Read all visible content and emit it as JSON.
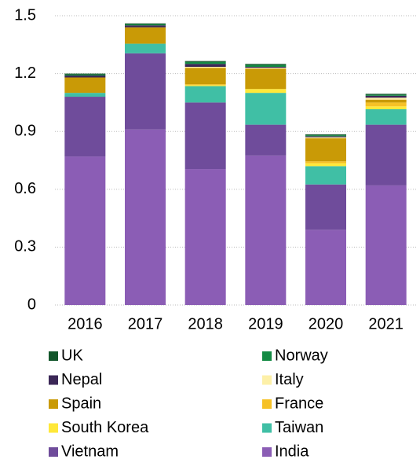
{
  "chart_data": {
    "type": "stacked_bar",
    "categories": [
      "2016",
      "2017",
      "2018",
      "2019",
      "2020",
      "2021"
    ],
    "series": [
      {
        "name": "India",
        "color": "#8b5db5",
        "values": [
          0.77,
          0.91,
          0.705,
          0.775,
          0.39,
          0.62
        ]
      },
      {
        "name": "Vietnam",
        "color": "#6f4c9b",
        "values": [
          0.31,
          0.395,
          0.345,
          0.16,
          0.235,
          0.315
        ]
      },
      {
        "name": "Taiwan",
        "color": "#40bfa5",
        "values": [
          0.02,
          0.05,
          0.085,
          0.165,
          0.095,
          0.08
        ]
      },
      {
        "name": "South Korea",
        "color": "#ffe83a",
        "values": [
          0,
          0,
          0.005,
          0.02,
          0.015,
          0.015
        ]
      },
      {
        "name": "France",
        "color": "#f6c126",
        "values": [
          0,
          0,
          0.005,
          0,
          0.01,
          0.02
        ]
      },
      {
        "name": "Spain",
        "color": "#c99a06",
        "values": [
          0.08,
          0.085,
          0.085,
          0.105,
          0.12,
          0.015
        ]
      },
      {
        "name": "Italy",
        "color": "#fdf0a8",
        "values": [
          0,
          0,
          0.005,
          0.005,
          0.005,
          0.01
        ]
      },
      {
        "name": "Nepal",
        "color": "#3b2757",
        "values": [
          0.01,
          0.01,
          0.015,
          0.005,
          0.005,
          0.01
        ]
      },
      {
        "name": "Norway",
        "color": "#138a43",
        "values": [
          0.005,
          0.005,
          0.01,
          0.01,
          0.005,
          0.005
        ]
      },
      {
        "name": "UK",
        "color": "#12562b",
        "values": [
          0.005,
          0.005,
          0.005,
          0.005,
          0.005,
          0.005
        ]
      }
    ],
    "ylim": [
      0,
      1.5
    ],
    "yticks": [
      0,
      {
        "value": 0.3,
        "label": "0.3"
      },
      {
        "value": 0.6,
        "label": "0.6"
      },
      {
        "value": 0.9,
        "label": "0.9"
      },
      {
        "value": 1.2,
        "label": "1.2"
      },
      {
        "value": 1.5,
        "label": "1.5"
      }
    ],
    "grid": true,
    "legend": "bottom"
  }
}
